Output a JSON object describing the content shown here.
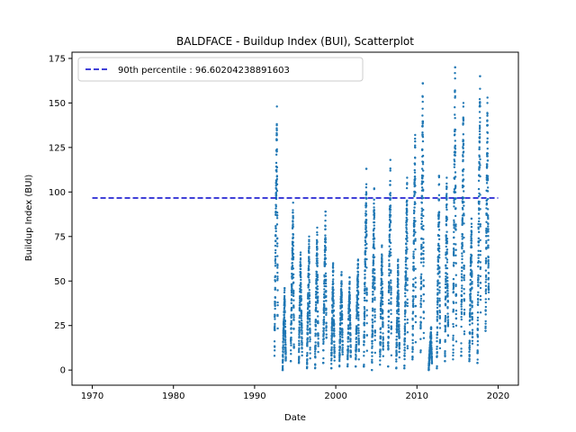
{
  "chart_data": {
    "type": "scatter",
    "title": "BALDFACE - Buildup Index (BUI), Scatterplot",
    "xlabel": "Date",
    "ylabel": "Buildup Index (BUI)",
    "xlim": [
      1967.5,
      2022.5
    ],
    "ylim": [
      -8.5,
      178.5
    ],
    "xticks": [
      1970,
      1980,
      1990,
      2000,
      2010,
      2020
    ],
    "xtick_labels": [
      "1970",
      "1980",
      "1990",
      "2000",
      "2010",
      "2020"
    ],
    "yticks": [
      0,
      25,
      50,
      75,
      100,
      125,
      150,
      175
    ],
    "ytick_labels": [
      "0",
      "25",
      "50",
      "75",
      "100",
      "125",
      "150",
      "175"
    ],
    "grid": false,
    "legend_position": "upper-left",
    "series": [
      {
        "name": "",
        "color": "#1f77b4",
        "marker": "dot",
        "seasons": [
          {
            "x": [
              1992.45,
              1992.85
            ],
            "ymin": 8,
            "ymax": 148
          },
          {
            "x": [
              1993.45,
              1993.85
            ],
            "ymin": 0,
            "ymax": 46
          },
          {
            "x": [
              1994.45,
              1994.85
            ],
            "ymin": 5,
            "ymax": 94
          },
          {
            "x": [
              1995.45,
              1995.85
            ],
            "ymin": 4,
            "ymax": 66
          },
          {
            "x": [
              1996.45,
              1996.85
            ],
            "ymin": 1,
            "ymax": 75
          },
          {
            "x": [
              1997.45,
              1997.85
            ],
            "ymin": 1,
            "ymax": 80
          },
          {
            "x": [
              1998.45,
              1998.85
            ],
            "ymin": 4,
            "ymax": 89
          },
          {
            "x": [
              1999.45,
              1999.85
            ],
            "ymin": 1,
            "ymax": 60
          },
          {
            "x": [
              2000.45,
              2000.85
            ],
            "ymin": 2,
            "ymax": 55
          },
          {
            "x": [
              2001.45,
              2001.85
            ],
            "ymin": 2,
            "ymax": 52
          },
          {
            "x": [
              2002.45,
              2002.85
            ],
            "ymin": 2,
            "ymax": 62
          },
          {
            "x": [
              2003.45,
              2003.85
            ],
            "ymin": 2,
            "ymax": 113
          },
          {
            "x": [
              2004.45,
              2004.85
            ],
            "ymin": 0,
            "ymax": 102
          },
          {
            "x": [
              2005.45,
              2005.85
            ],
            "ymin": 3,
            "ymax": 70
          },
          {
            "x": [
              2006.45,
              2006.85
            ],
            "ymin": 2,
            "ymax": 118
          },
          {
            "x": [
              2007.45,
              2007.85
            ],
            "ymin": 1,
            "ymax": 62
          },
          {
            "x": [
              2008.45,
              2008.85
            ],
            "ymin": 1,
            "ymax": 108
          },
          {
            "x": [
              2009.45,
              2009.85
            ],
            "ymin": 6,
            "ymax": 132
          },
          {
            "x": [
              2010.45,
              2010.85
            ],
            "ymin": 10,
            "ymax": 161
          },
          {
            "x": [
              2011.45,
              2011.85
            ],
            "ymin": 0,
            "ymax": 24
          },
          {
            "x": [
              2012.45,
              2012.85
            ],
            "ymin": 1,
            "ymax": 109
          },
          {
            "x": [
              2013.45,
              2013.85
            ],
            "ymin": 5,
            "ymax": 108
          },
          {
            "x": [
              2014.45,
              2014.85
            ],
            "ymin": 6,
            "ymax": 170
          },
          {
            "x": [
              2015.45,
              2015.85
            ],
            "ymin": 8,
            "ymax": 150
          },
          {
            "x": [
              2016.45,
              2016.85
            ],
            "ymin": 5,
            "ymax": 85
          },
          {
            "x": [
              2017.45,
              2017.85
            ],
            "ymin": 4,
            "ymax": 165
          },
          {
            "x": [
              2018.45,
              2018.85
            ],
            "ymin": 22,
            "ymax": 153
          }
        ]
      }
    ],
    "reference_lines": [
      {
        "label": "90th percentile : 96.60204238891603",
        "y": 96.60204238891603,
        "x_range": [
          1970,
          2020
        ],
        "style": "dashed",
        "color": "#0000cc"
      }
    ]
  }
}
